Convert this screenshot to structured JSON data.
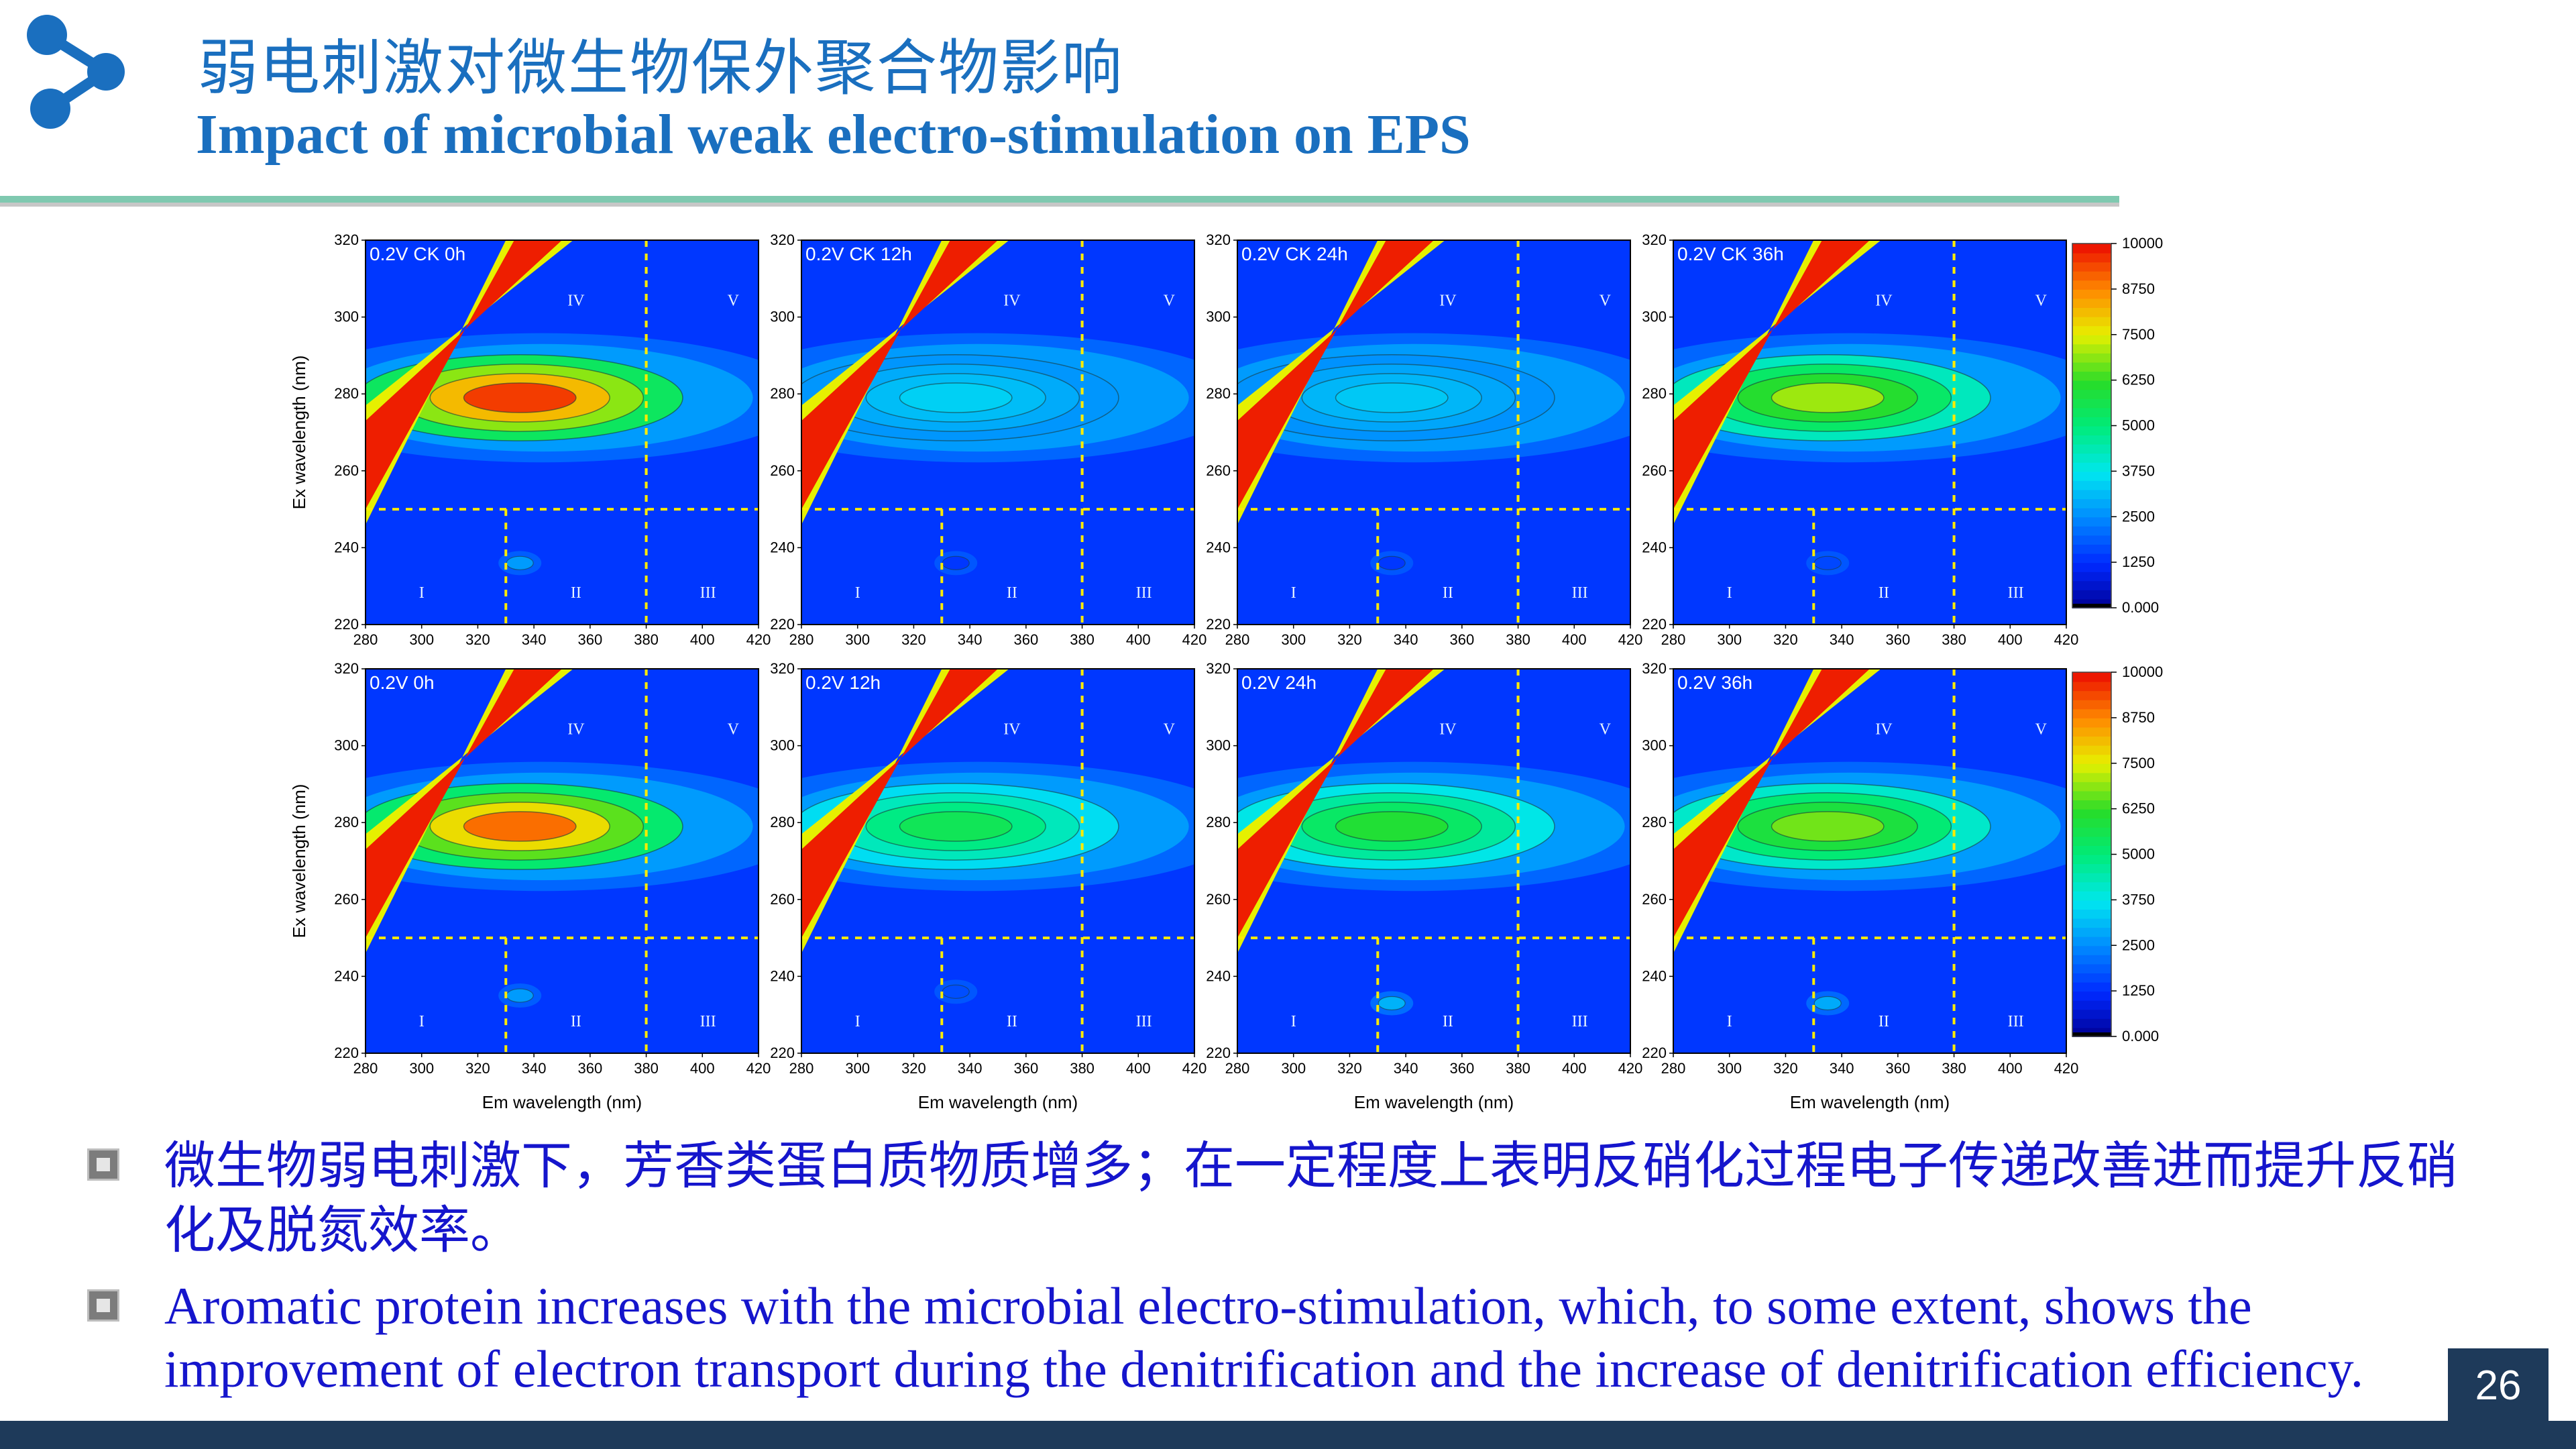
{
  "header": {
    "title_zh": "弱电刺激对微生物保外聚合物影响",
    "title_en": "Impact of microbial weak electro-stimulation on EPS"
  },
  "colors": {
    "title": "#1a6fbf",
    "bullet_text": "#1515cc",
    "footer": "#1e3a5a",
    "region_lines": "#ffeb00"
  },
  "chart_data": {
    "type": "heatmap",
    "description_units": "fluorescence intensity (EEM)",
    "x": {
      "label": "Em wavelength (nm)",
      "range": [
        280,
        420
      ],
      "ticks": [
        280,
        300,
        320,
        340,
        360,
        380,
        400,
        420
      ]
    },
    "y": {
      "label": "Ex wavelength (nm)",
      "range": [
        220,
        320
      ],
      "ticks": [
        220,
        240,
        260,
        280,
        300,
        320
      ]
    },
    "region_boundaries": {
      "em": [
        330,
        380
      ],
      "ex": [
        250
      ]
    },
    "region_labels": [
      "I",
      "II",
      "III",
      "IV",
      "V"
    ],
    "colorbar": {
      "range": [
        0,
        10000
      ],
      "ticks": [
        "0.000",
        "1250",
        "2500",
        "3750",
        "5000",
        "6250",
        "7500",
        "8750",
        "10000"
      ]
    },
    "panels": [
      {
        "label": "0.2V CK 0h",
        "peak": {
          "em": 335,
          "ex": 279,
          "value": 9500
        },
        "secondary": {
          "em": 335,
          "ex": 236,
          "value": 2700
        }
      },
      {
        "label": "0.2V CK 12h",
        "peak": {
          "em": 335,
          "ex": 279,
          "value": 3400
        },
        "secondary": {
          "em": 335,
          "ex": 236,
          "value": 1400
        }
      },
      {
        "label": "0.2V CK 24h",
        "peak": {
          "em": 335,
          "ex": 279,
          "value": 3300
        },
        "secondary": {
          "em": 335,
          "ex": 236,
          "value": 1400
        }
      },
      {
        "label": "0.2V CK 36h",
        "peak": {
          "em": 335,
          "ex": 279,
          "value": 7000
        },
        "secondary": {
          "em": 335,
          "ex": 236,
          "value": 1600
        }
      },
      {
        "label": "0.2V 0h",
        "peak": {
          "em": 335,
          "ex": 279,
          "value": 9000
        },
        "secondary": {
          "em": 335,
          "ex": 235,
          "value": 2700
        }
      },
      {
        "label": "0.2V 12h",
        "peak": {
          "em": 335,
          "ex": 279,
          "value": 5500
        },
        "secondary": {
          "em": 335,
          "ex": 236,
          "value": 1700
        }
      },
      {
        "label": "0.2V 24h",
        "peak": {
          "em": 335,
          "ex": 279,
          "value": 6000
        },
        "secondary": {
          "em": 335,
          "ex": 233,
          "value": 3000
        }
      },
      {
        "label": "0.2V 36h",
        "peak": {
          "em": 335,
          "ex": 279,
          "value": 6700
        },
        "secondary": {
          "em": 335,
          "ex": 233,
          "value": 2900
        }
      }
    ]
  },
  "bullets": [
    {
      "text": "微生物弱电刺激下，芳香类蛋白质物质增多；在一定程度上表明反硝化过程电子传递改善进而提升反硝化及脱氮效率。"
    },
    {
      "text": "Aromatic protein increases with the microbial electro-stimulation, which, to some extent, shows the improvement of electron transport during the denitrification and the increase of denitrification efficiency."
    }
  ],
  "page_number": "26"
}
